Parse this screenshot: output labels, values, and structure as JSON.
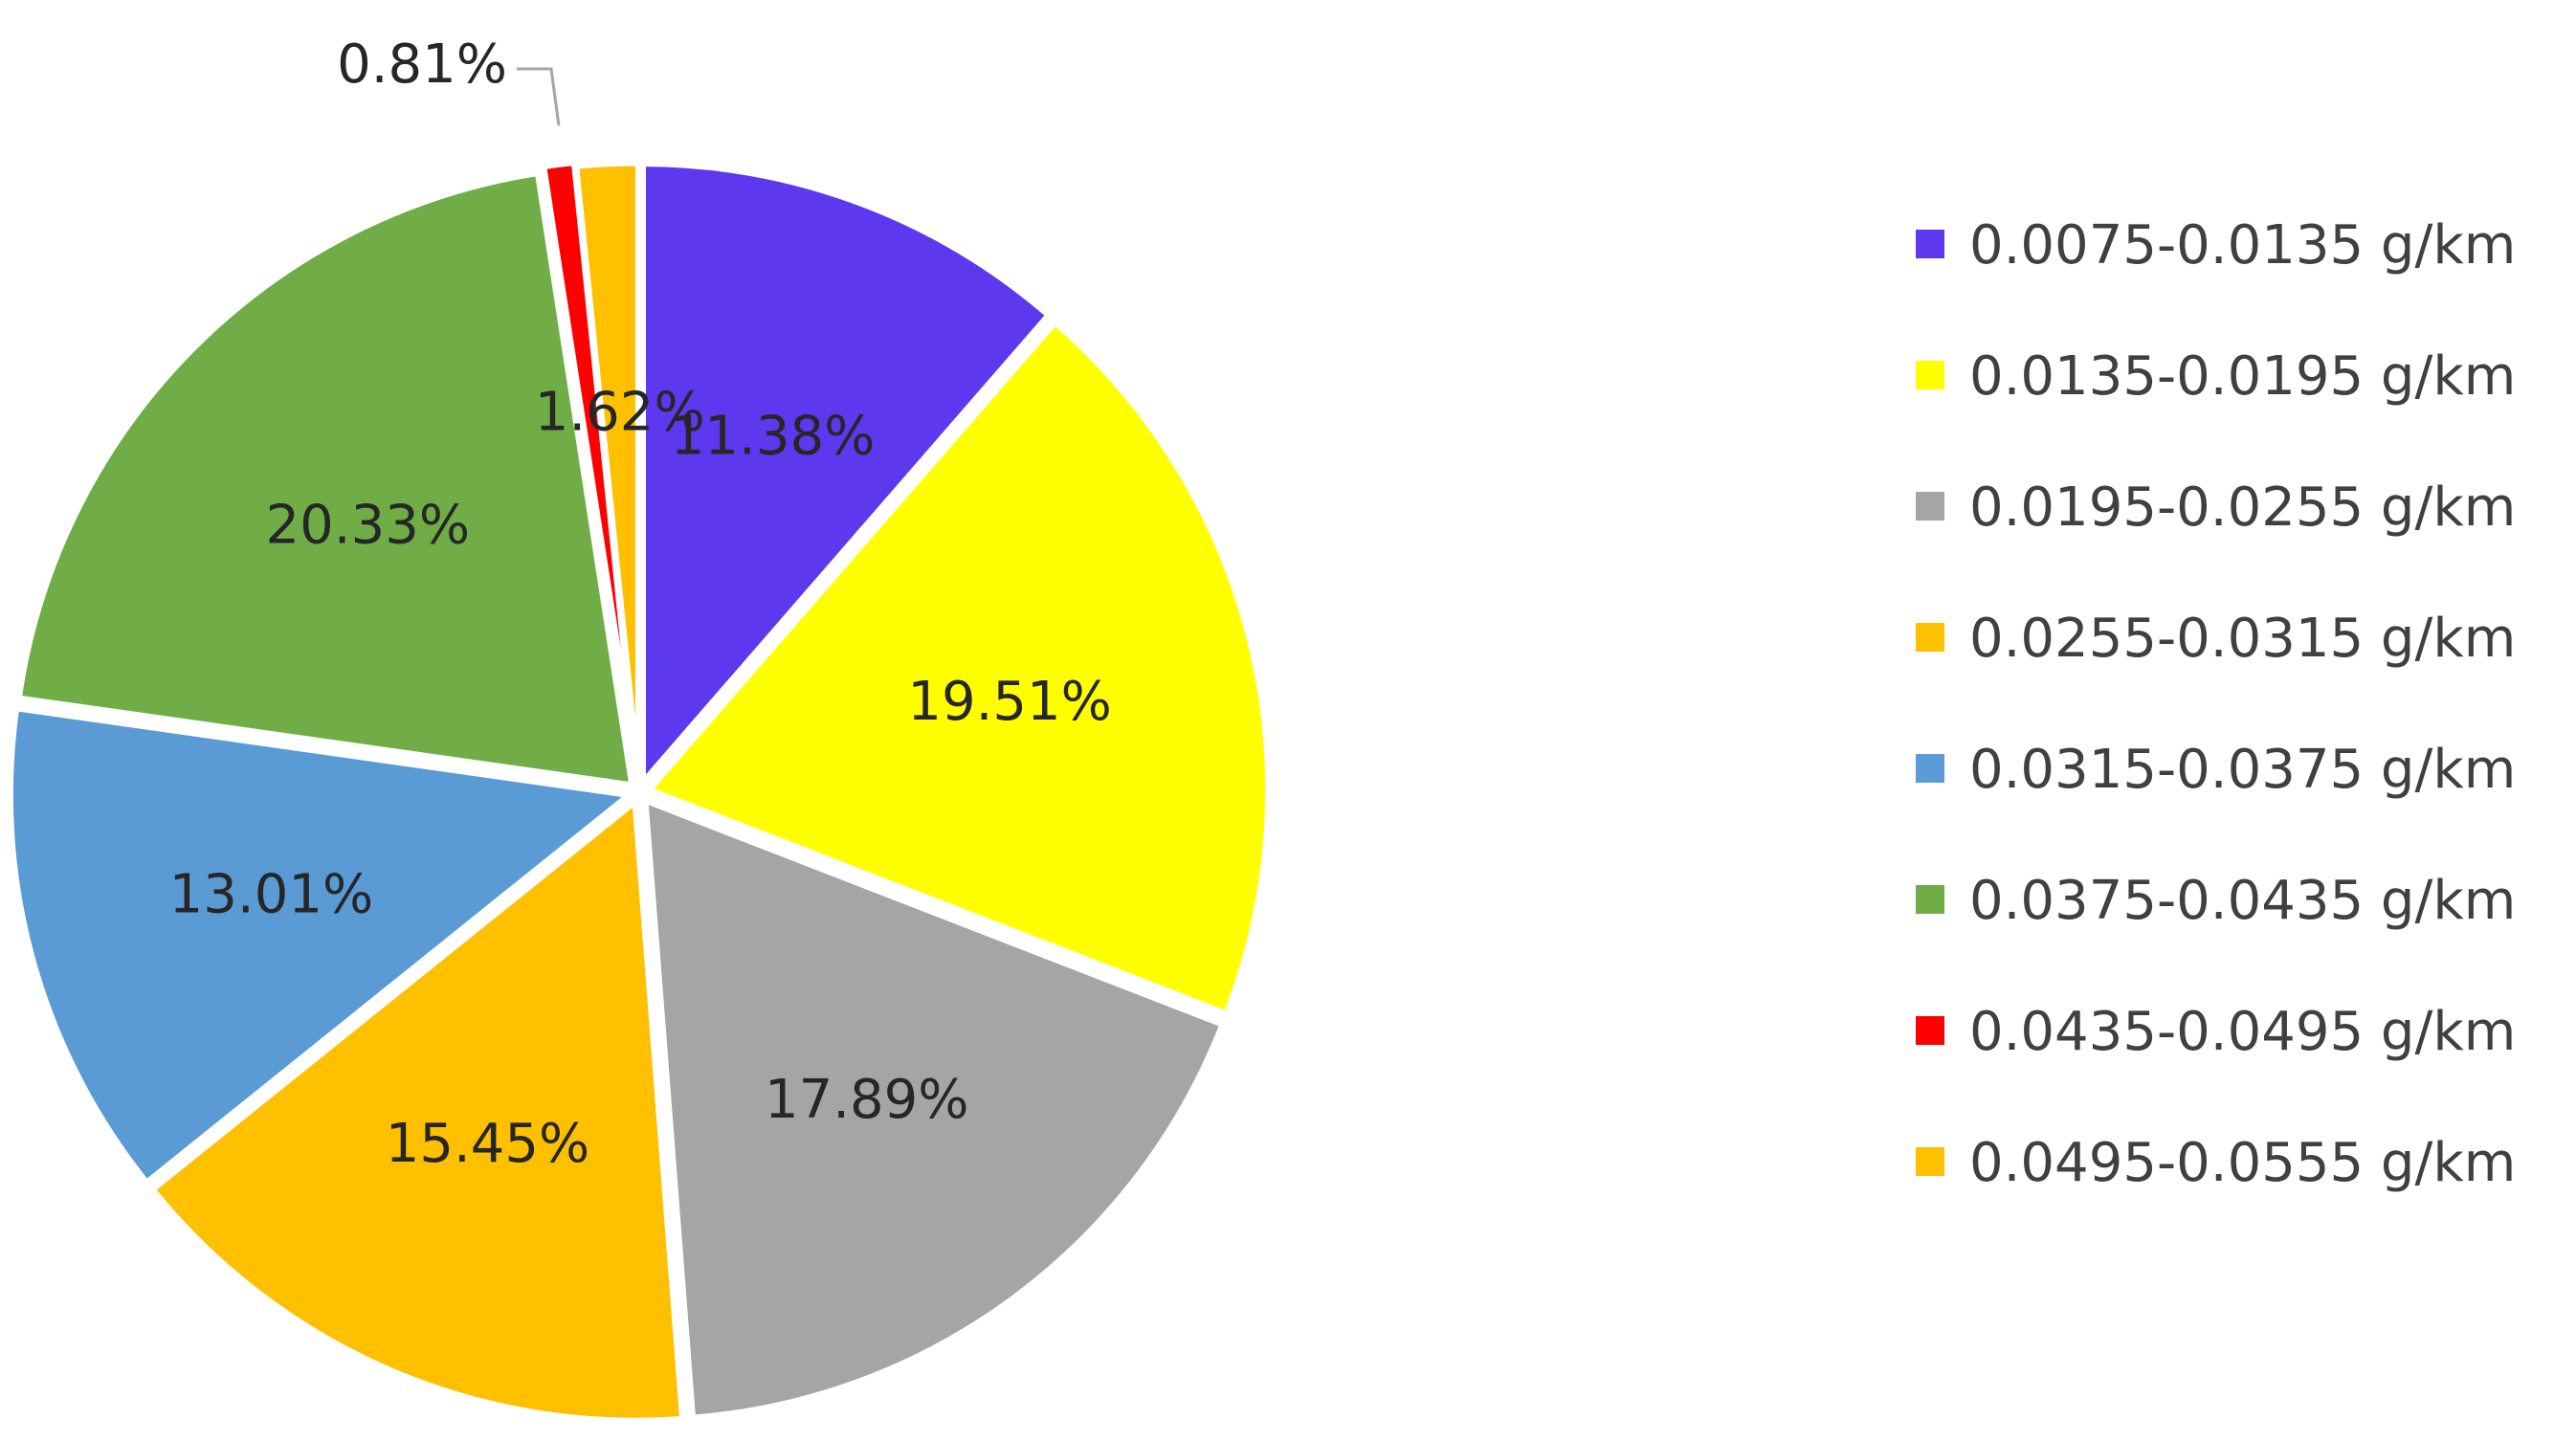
{
  "chart_data": {
    "type": "pie",
    "title": "",
    "legend_position": "right",
    "slices": [
      {
        "name": "0.0075-0.0135 g/km",
        "value": 11.38,
        "label": "11.38%",
        "color": "#5E38EE"
      },
      {
        "name": "0.0135-0.0195 g/km",
        "value": 19.51,
        "label": "19.51%",
        "color": "#FFFF00"
      },
      {
        "name": "0.0195-0.0255 g/km",
        "value": 17.89,
        "label": "17.89%",
        "color": "#A5A5A5"
      },
      {
        "name": "0.0255-0.0315 g/km",
        "value": 15.45,
        "label": "15.45%",
        "color": "#FFC000"
      },
      {
        "name": "0.0315-0.0375 g/km",
        "value": 13.01,
        "label": "13.01%",
        "color": "#5B9BD5"
      },
      {
        "name": "0.0375-0.0435 g/km",
        "value": 20.33,
        "label": "20.33%",
        "color": "#70AD47"
      },
      {
        "name": "0.0435-0.0495 g/km",
        "value": 0.81,
        "label": "0.81%",
        "color": "#FF0000"
      },
      {
        "name": "0.0495-0.0555 g/km",
        "value": 1.62,
        "label": "1.62%",
        "color": "#FFC000"
      }
    ]
  }
}
